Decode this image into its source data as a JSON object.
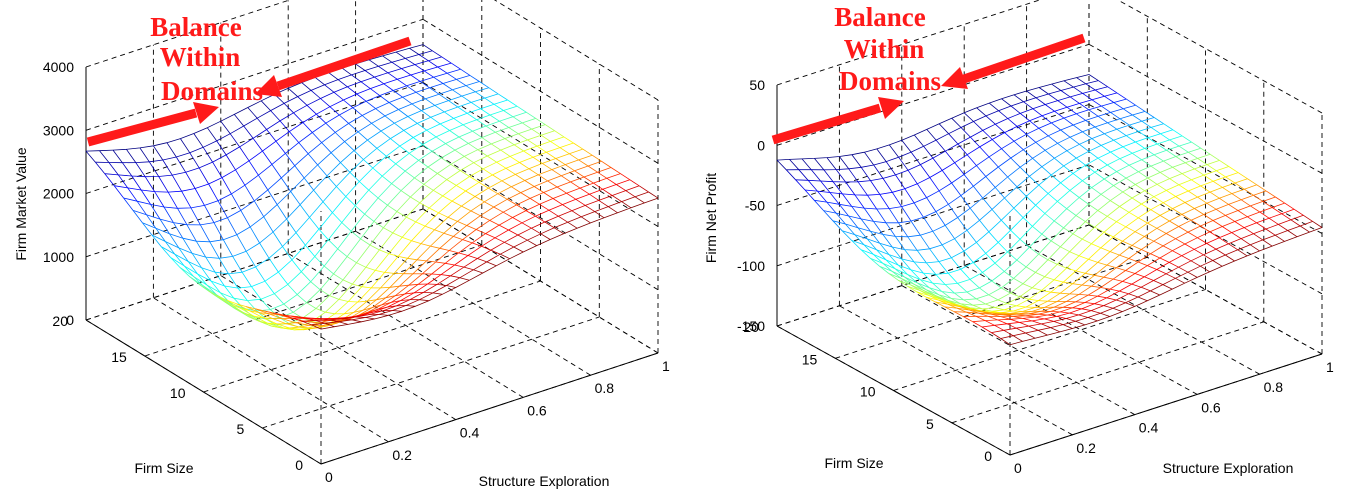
{
  "chart_data": [
    {
      "type": "surface",
      "title": "",
      "xlabel": "Structure Exploration",
      "ylabel": "Firm Size",
      "zlabel": "Firm Market Value",
      "x_ticks": [
        "0",
        "0.2",
        "0.4",
        "0.6",
        "0.8",
        "1"
      ],
      "y_ticks": [
        "0",
        "5",
        "10",
        "15",
        "20"
      ],
      "z_ticks": [
        "0",
        "1000",
        "2000",
        "3000",
        "4000"
      ],
      "xlim": [
        0,
        1
      ],
      "ylim": [
        0,
        20
      ],
      "zlim": [
        0,
        4000
      ],
      "grid": true,
      "surface": {
        "corner_x0_y0": 2300,
        "corner_x1_y0": 2450,
        "corner_x0_y20": 2900,
        "corner_x1_y20": 2600,
        "valley_min": 700,
        "valley_x": 0.25,
        "valley_y": 10
      },
      "annotation": {
        "lines": [
          "Balance",
          "Within",
          "Domains"
        ],
        "color": "#ff1a1a"
      }
    },
    {
      "type": "surface",
      "title": "",
      "xlabel": "Structure Exploration",
      "ylabel": "Firm Size",
      "zlabel": "Firm Net Profit",
      "x_ticks": [
        "0",
        "0.2",
        "0.4",
        "0.6",
        "0.8",
        "1"
      ],
      "y_ticks": [
        "0",
        "5",
        "10",
        "15",
        "20"
      ],
      "z_ticks": [
        "-150",
        "-100",
        "-50",
        "0",
        "50"
      ],
      "xlim": [
        0,
        1
      ],
      "ylim": [
        0,
        20
      ],
      "zlim": [
        -150,
        50
      ],
      "grid": true,
      "surface": {
        "corner_x0_y0": -55,
        "corner_x1_y0": -45,
        "corner_x0_y20": -5,
        "corner_x1_y20": -25,
        "valley_min": -100,
        "valley_x": 0.3,
        "valley_y": 10
      },
      "annotation": {
        "lines": [
          "Balance",
          "Within",
          "Domains"
        ],
        "color": "#ff1a1a"
      }
    }
  ]
}
